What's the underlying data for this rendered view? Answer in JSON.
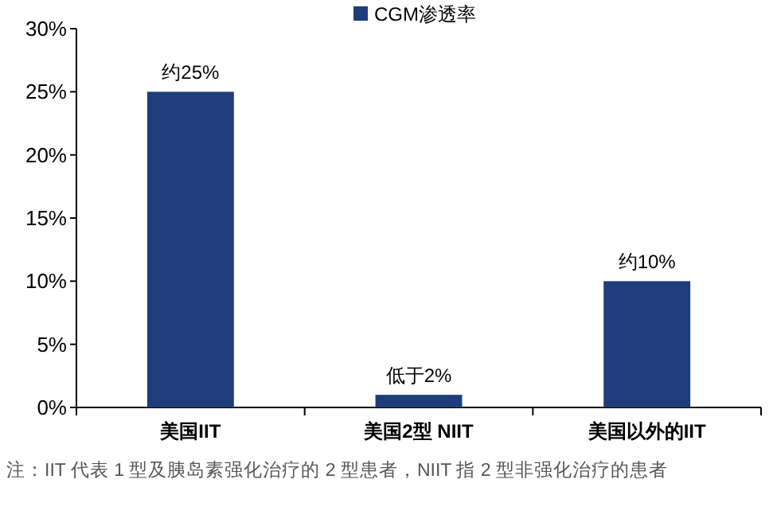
{
  "chart_data": {
    "type": "bar",
    "categories": [
      "美国IIT",
      "美国2型 NIIT",
      "美国以外的IIT"
    ],
    "series": [
      {
        "name": "CGM渗透率",
        "color": "#1f3d7a",
        "values": [
          25,
          1,
          10
        ]
      }
    ],
    "value_labels": [
      "约25%",
      "低于2%",
      "约10%"
    ],
    "ylim": [
      0,
      30
    ],
    "yticks": [
      {
        "value": 0,
        "label": "0%"
      },
      {
        "value": 5,
        "label": "5%"
      },
      {
        "value": 10,
        "label": "10%"
      },
      {
        "value": 15,
        "label": "15%"
      },
      {
        "value": 20,
        "label": "20%"
      },
      {
        "value": 25,
        "label": "25%"
      },
      {
        "value": 30,
        "label": "30%"
      }
    ],
    "grid": false,
    "legend": "top",
    "annotations": [
      "注：IIT 代表 1 型及胰岛素强化治疗的 2 型患者，NIIT 指 2 型非强化治疗的患者"
    ]
  }
}
